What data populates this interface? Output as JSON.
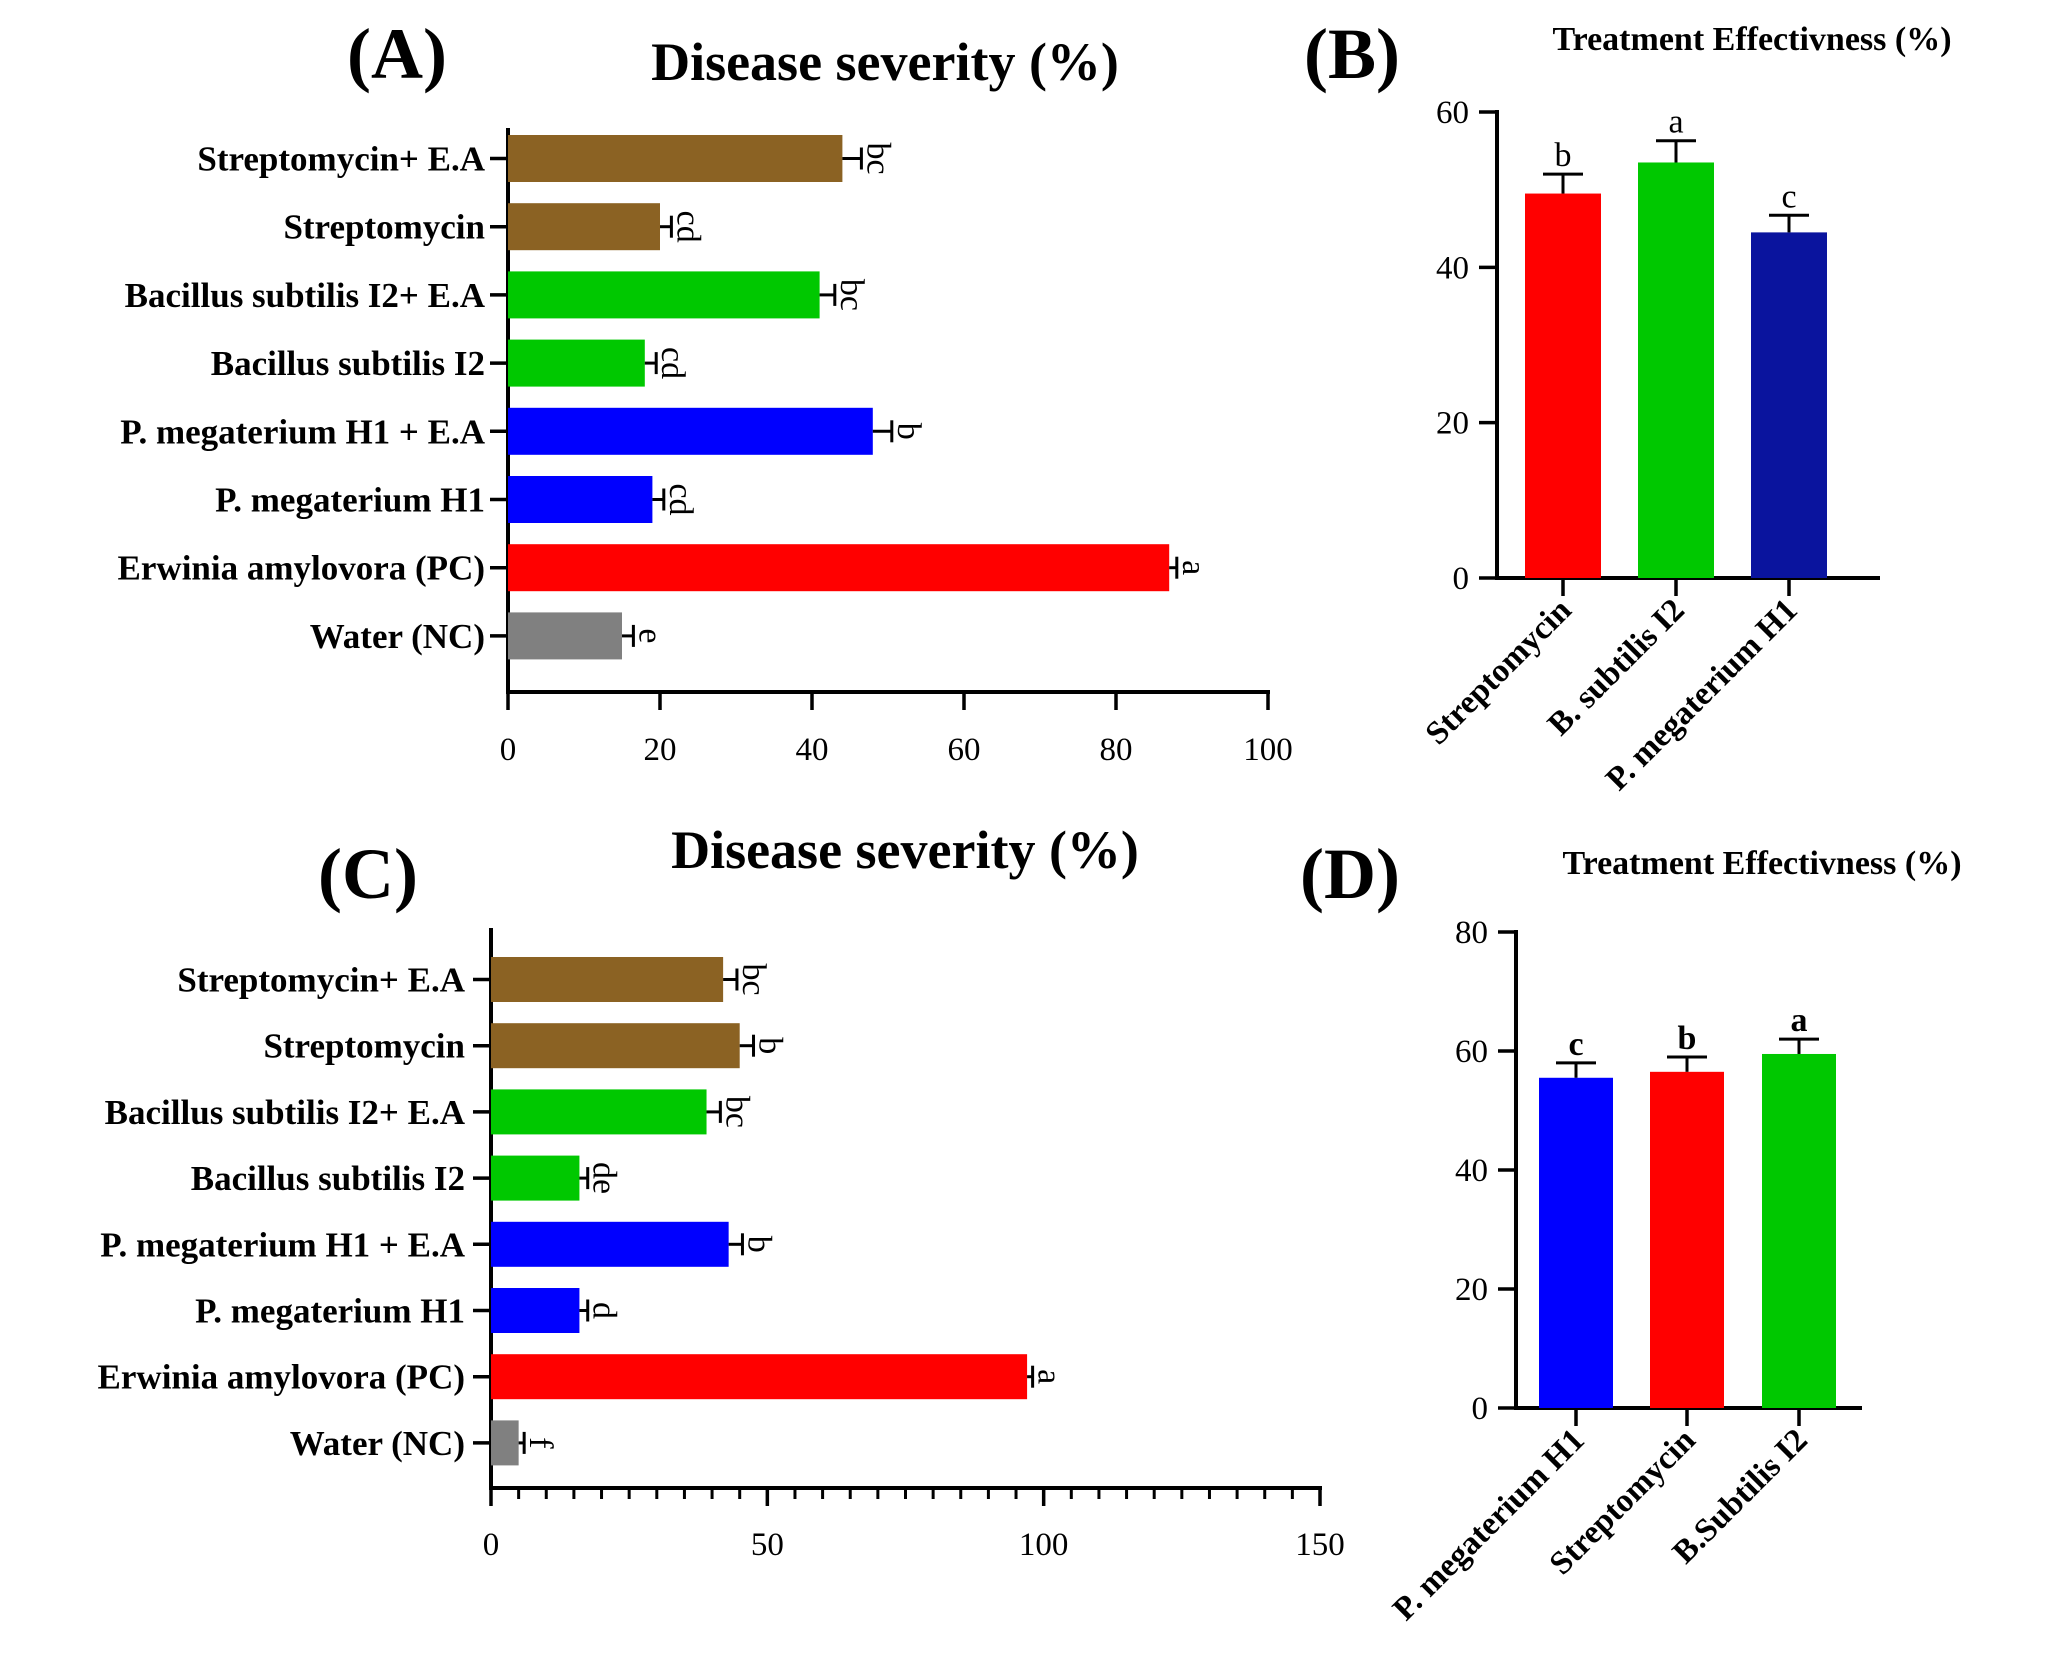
{
  "colors": {
    "brown": "#8B6223",
    "green": "#00C800",
    "blue": "#0000FF",
    "red": "#FF0000",
    "gray": "#808080",
    "navy": "#0A149E"
  },
  "chart_data": [
    {
      "panel": "(A)",
      "type": "bar",
      "orientation": "horizontal",
      "title": "Disease severity (%)",
      "categories": [
        "Streptomycin+ E.A",
        "Streptomycin",
        "Bacillus subtilis I2+ E.A",
        "Bacillus subtilis I2",
        "P. megaterium H1 + E.A",
        "P. megaterium H1",
        "Erwinia amylovora (PC)",
        "Water (NC)"
      ],
      "values": [
        44,
        20,
        41,
        18,
        48,
        19,
        87,
        15
      ],
      "errors": [
        2.5,
        1.5,
        2.0,
        1.5,
        2.5,
        1.5,
        1.0,
        1.5
      ],
      "significance": [
        "bc",
        "cd",
        "bc",
        "cd",
        "b",
        "cd",
        "a",
        "e"
      ],
      "bar_colors": [
        "#8B6223",
        "#8B6223",
        "#00C800",
        "#00C800",
        "#0000FF",
        "#0000FF",
        "#FF0000",
        "#808080"
      ],
      "xlim": [
        0,
        100
      ],
      "xticks": [
        0,
        20,
        40,
        60,
        80,
        100
      ],
      "xlabel": "",
      "ylabel": ""
    },
    {
      "panel": "(B)",
      "type": "bar",
      "orientation": "vertical",
      "title": "Treatment Effectivness (%)",
      "categories": [
        "Streptomycin",
        "B. subtilis I2",
        "P. megaterium H1"
      ],
      "values": [
        49.5,
        53.5,
        44.5
      ],
      "errors": [
        2.5,
        2.8,
        2.2
      ],
      "significance": [
        "b",
        "a",
        "c"
      ],
      "bar_colors": [
        "#FF0000",
        "#00C800",
        "#0A149E"
      ],
      "ylim": [
        0,
        60
      ],
      "yticks": [
        0,
        20,
        40,
        60
      ],
      "xlabel": "",
      "ylabel": ""
    },
    {
      "panel": "(C)",
      "type": "bar",
      "orientation": "horizontal",
      "title": "Disease severity (%)",
      "categories": [
        "Streptomycin+ E.A",
        "Streptomycin",
        "Bacillus subtilis I2+ E.A",
        "Bacillus subtilis I2",
        "P. megaterium H1 + E.A",
        "P. megaterium H1",
        "Erwinia amylovora (PC)",
        "Water (NC)"
      ],
      "values": [
        42,
        45,
        39,
        16,
        43,
        16,
        97,
        5
      ],
      "errors": [
        2.5,
        2.5,
        2.5,
        1.5,
        2.5,
        1.5,
        1.0,
        1.0
      ],
      "significance": [
        "bc",
        "b",
        "bc",
        "de",
        "b",
        "d",
        "a",
        "f"
      ],
      "bar_colors": [
        "#8B6223",
        "#8B6223",
        "#00C800",
        "#00C800",
        "#0000FF",
        "#0000FF",
        "#FF0000",
        "#808080"
      ],
      "xlim": [
        0,
        150
      ],
      "xticks": [
        0,
        50,
        100,
        150
      ],
      "xlabel": "",
      "ylabel": ""
    },
    {
      "panel": "(D)",
      "type": "bar",
      "orientation": "vertical",
      "title": "Treatment Effectivness (%)",
      "categories": [
        "P. megaterium H1",
        "Streptomycin",
        "B.Subtilis I2"
      ],
      "values": [
        55.5,
        56.5,
        59.5
      ],
      "errors": [
        2.5,
        2.5,
        2.5
      ],
      "significance": [
        "c",
        "b",
        "a"
      ],
      "bar_colors": [
        "#0000FF",
        "#FF0000",
        "#00C800"
      ],
      "ylim": [
        0,
        80
      ],
      "yticks": [
        0,
        20,
        40,
        60,
        80
      ],
      "xlabel": "",
      "ylabel": ""
    }
  ]
}
